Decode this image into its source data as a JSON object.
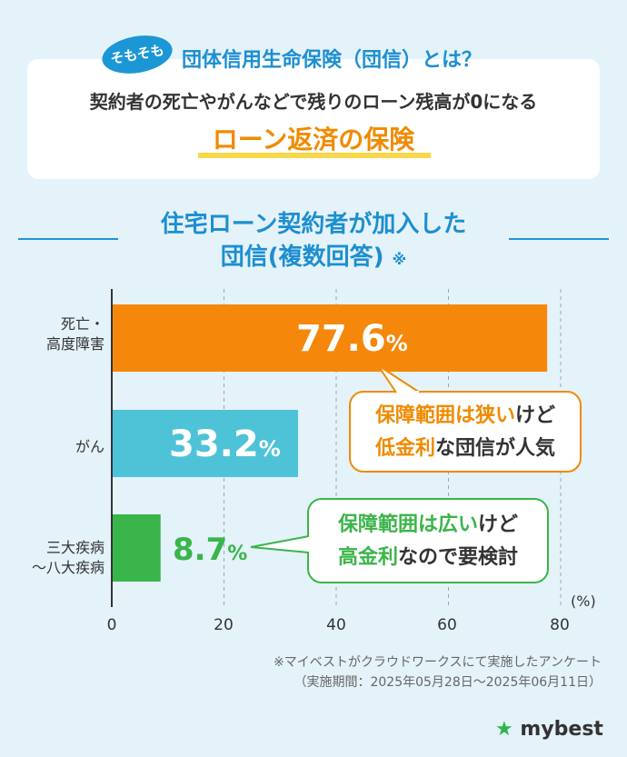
{
  "header": {
    "badge": "そもそも",
    "title": "団体信用生命保険（団信）とは？",
    "description": "契約者の死亡やがんなどで残りのローン残高が0になる",
    "highlight": "ローン返済の保険"
  },
  "chart_title": {
    "line1": "住宅ローン契約者が加入した",
    "line2": "団信(複数回答)",
    "mark": "※"
  },
  "chart_data": {
    "type": "bar",
    "orientation": "horizontal",
    "categories": [
      "死亡・\n高度障害",
      "がん",
      "三大疾病\n～八大疾病"
    ],
    "values": [
      77.6,
      33.2,
      8.7
    ],
    "value_labels": [
      "77.6",
      "33.2",
      "8.7"
    ],
    "value_suffix": "%",
    "xlim": [
      0,
      80
    ],
    "xticks": [
      0,
      20,
      40,
      60,
      80
    ],
    "xunit": "(%)",
    "grid": "vertical dashed",
    "colors": [
      "#f5870a",
      "#4ec3d8",
      "#3ab54a"
    ]
  },
  "callouts": [
    {
      "line1_em": "保障範囲は狭い",
      "line1_rest": "けど",
      "line2_em": "低金利",
      "line2_rest": "な団信が人気",
      "color": "#f08a00"
    },
    {
      "line1_em": "保障範囲は広い",
      "line1_rest": "けど",
      "line2_em": "高金利",
      "line2_rest": "なので要検討",
      "color": "#3ab54a"
    }
  ],
  "notes": {
    "line1": "※マイベストがクラウドワークスにて実施したアンケート",
    "line2": "（実施期間：2025年05月28日～2025年06月11日）"
  },
  "logo": {
    "star": "★",
    "text": "mybest"
  }
}
